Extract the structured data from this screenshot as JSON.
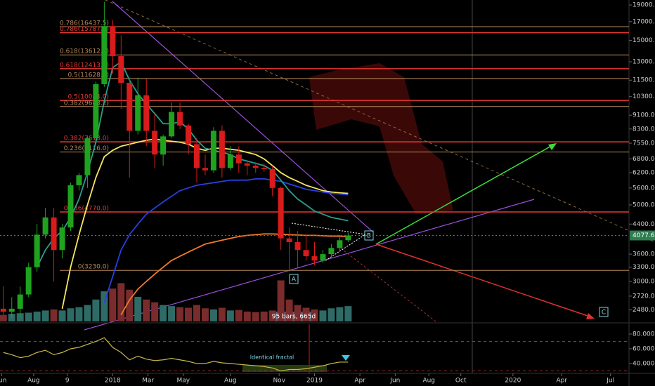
{
  "chart_data": {
    "type": "candlestick",
    "log_scale": true,
    "grid": false,
    "up_color": "#1fa31f",
    "down_color": "#d81b1b",
    "xlim": [
      -6.7,
      30.7
    ],
    "xticks": [
      {
        "value": -6.6,
        "label": "Jun"
      },
      {
        "value": -4.7,
        "label": "Aug"
      },
      {
        "value": -2.7,
        "label": "9"
      },
      {
        "value": 0,
        "label": "2018"
      },
      {
        "value": 2.1,
        "label": "Mar"
      },
      {
        "value": 4.2,
        "label": "May"
      },
      {
        "value": 7,
        "label": "Aug"
      },
      {
        "value": 9.9,
        "label": "Nov"
      },
      {
        "value": 12,
        "label": "2019"
      },
      {
        "value": 14.7,
        "label": "Apr"
      },
      {
        "value": 16.8,
        "label": "Jun"
      },
      {
        "value": 18.8,
        "label": "Aug"
      },
      {
        "value": 20.7,
        "label": "Oct"
      },
      {
        "value": 23.8,
        "label": "2020"
      },
      {
        "value": 26.7,
        "label": "Apr"
      },
      {
        "value": 29.6,
        "label": "Jul"
      }
    ],
    "ylim": [
      2297,
      19640
    ],
    "yticks": [
      {
        "value": 19000,
        "label": "19000.0"
      },
      {
        "value": 17000,
        "label": "17000.0"
      },
      {
        "value": 15000,
        "label": "15000.0"
      },
      {
        "value": 13000,
        "label": "13000.0"
      },
      {
        "value": 11500,
        "label": "11500.0"
      },
      {
        "value": 10300,
        "label": "10300.0"
      },
      {
        "value": 9100,
        "label": "9100.0"
      },
      {
        "value": 8300,
        "label": "8300.0"
      },
      {
        "value": 7550,
        "label": "7550.0"
      },
      {
        "value": 6800,
        "label": "6800.0"
      },
      {
        "value": 6200,
        "label": "6200.0"
      },
      {
        "value": 5600,
        "label": "5600.0"
      },
      {
        "value": 5000,
        "label": "5000.0"
      },
      {
        "value": 4400,
        "label": "4400.0"
      },
      {
        "value": 3600,
        "label": "3600.0"
      },
      {
        "value": 3300,
        "label": "3300.0"
      },
      {
        "value": 3000,
        "label": "3000.0"
      },
      {
        "value": 2720,
        "label": "2720.0"
      },
      {
        "value": 2480,
        "label": "2480.0"
      }
    ],
    "x": [
      -6.5,
      -6,
      -5.5,
      -5,
      -4.5,
      -4,
      -3.5,
      -3,
      -2.5,
      -2,
      -1.5,
      -1,
      -0.5,
      0,
      0.5,
      1,
      1.5,
      2,
      2.5,
      3,
      3.5,
      4,
      4.5,
      5,
      5.5,
      6,
      6.5,
      7,
      7.5,
      8,
      8.5,
      9,
      9.5,
      10,
      10.5,
      11,
      11.5,
      12,
      12.5,
      13,
      13.5,
      14
    ],
    "open": [
      2500,
      2450,
      2500,
      2750,
      3300,
      4100,
      4600,
      3700,
      4300,
      5700,
      6100,
      7800,
      11200,
      16500,
      13500,
      11300,
      8200,
      10400,
      8200,
      7000,
      7900,
      9300,
      8500,
      7500,
      6400,
      6300,
      8200,
      6400,
      7000,
      6600,
      6500,
      6400,
      6350,
      5600,
      4000,
      3900,
      3700,
      3550,
      3450,
      3600,
      3750,
      3950
    ],
    "high": [
      2900,
      2700,
      2900,
      3400,
      4400,
      4900,
      4900,
      4400,
      5800,
      6200,
      7900,
      11400,
      19400,
      17200,
      15500,
      11700,
      11700,
      11600,
      9200,
      8000,
      9900,
      9900,
      8600,
      7800,
      7000,
      8400,
      8500,
      7400,
      7400,
      6700,
      6650,
      6600,
      6500,
      5650,
      4300,
      4200,
      4100,
      3900,
      3700,
      3850,
      4100,
      4150
    ],
    "low": [
      2400,
      2350,
      2350,
      2700,
      3200,
      4000,
      3000,
      3500,
      4200,
      5500,
      5600,
      7800,
      11000,
      12000,
      9500,
      6000,
      8000,
      7400,
      6400,
      6500,
      7800,
      8300,
      7000,
      5800,
      6100,
      6200,
      6000,
      6300,
      6200,
      6100,
      6200,
      6250,
      5300,
      3700,
      3200,
      3300,
      3450,
      3350,
      3400,
      3500,
      3650,
      3900
    ],
    "close": [
      2450,
      2500,
      2750,
      3300,
      4100,
      4600,
      3700,
      4300,
      5700,
      6100,
      7800,
      11200,
      16500,
      13500,
      11300,
      8200,
      10400,
      8200,
      7000,
      7900,
      9300,
      8500,
      7500,
      6400,
      6300,
      8200,
      6400,
      7000,
      6600,
      6500,
      6400,
      6350,
      5600,
      4000,
      3900,
      3700,
      3550,
      3450,
      3600,
      3750,
      3950,
      4077.6
    ],
    "overlays": [
      {
        "color": "#f5e663",
        "values": [
          null,
          null,
          null,
          null,
          null,
          null,
          null,
          2500,
          3300,
          4100,
          5000,
          6000,
          6900,
          7200,
          7400,
          7500,
          7600,
          7700,
          7750,
          7700,
          7650,
          7600,
          7500,
          7300,
          7200,
          7300,
          7300,
          7250,
          7200,
          7100,
          7000,
          6800,
          6500,
          6200,
          6000,
          5850,
          5700,
          5600,
          5500,
          5450,
          5420,
          5400
        ]
      },
      {
        "color": "#2a3fe0",
        "values": [
          null,
          null,
          null,
          null,
          null,
          null,
          null,
          null,
          null,
          null,
          null,
          null,
          2600,
          3100,
          3700,
          4100,
          4400,
          4700,
          4900,
          5100,
          5300,
          5500,
          5600,
          5700,
          5750,
          5800,
          5850,
          5900,
          5900,
          5900,
          5950,
          5950,
          5900,
          5850,
          5750,
          5650,
          5550,
          5500,
          5450,
          5400,
          5380,
          5350
        ]
      },
      {
        "color": "#f07a2a",
        "values": [
          null,
          null,
          null,
          null,
          null,
          null,
          null,
          null,
          null,
          null,
          null,
          null,
          null,
          null,
          2400,
          2650,
          2850,
          3000,
          3150,
          3300,
          3450,
          3550,
          3650,
          3750,
          3850,
          3900,
          3950,
          4000,
          4050,
          4080,
          4100,
          4120,
          4120,
          4110,
          4100,
          4090,
          4080,
          4080,
          4070,
          4060,
          4060,
          4050
        ]
      },
      {
        "color": "#2a9d8f",
        "values": [
          null,
          null,
          null,
          null,
          3300,
          3700,
          4000,
          4200,
          4600,
          5200,
          6200,
          7600,
          10000,
          12500,
          13000,
          11500,
          10500,
          9800,
          9200,
          8600,
          8600,
          8700,
          8300,
          7700,
          7300,
          7200,
          7100,
          7000,
          6800,
          6700,
          6600,
          6500,
          6300,
          5900,
          5500,
          5200,
          5000,
          4800,
          4700,
          4600,
          4550,
          4500
        ]
      }
    ],
    "levels": [
      {
        "label": "0.786(16437.5)",
        "value": 16437.5,
        "color": "#b5885a"
      },
      {
        "label": "0.786(15787.2)",
        "value": 15787.2,
        "color": "#e53935"
      },
      {
        "label": "0.618(13612.8)",
        "value": 13612.8,
        "color": "#b5885a"
      },
      {
        "label": "0.618(12413.3)",
        "value": 12413.3,
        "color": "#e53935"
      },
      {
        "label": "0.5(11628.0)",
        "value": 11628,
        "color": "#b5885a"
      },
      {
        "label": "0.5(10044.0)",
        "value": 10044,
        "color": "#e53935"
      },
      {
        "label": "0.382(9643.2)",
        "value": 9643.2,
        "color": "#b5885a"
      },
      {
        "label": "0.382(7618.0)",
        "value": 7618,
        "color": "#e53935"
      },
      {
        "label": "0.236(7116.0)",
        "value": 7116,
        "color": "#b5885a"
      },
      {
        "label": "0.236(4770.0)",
        "value": 4770,
        "color": "#e53935"
      },
      {
        "label": "0(3230.0)",
        "value": 3230,
        "color": "#b5885a"
      }
    ],
    "last_price": 4077.6,
    "volume": {
      "up_color": "#2f6b66",
      "down_color": "#7a2b2b",
      "ylim": [
        0,
        100
      ],
      "values": [
        12,
        14,
        15,
        16,
        18,
        20,
        22,
        20,
        24,
        26,
        30,
        40,
        55,
        60,
        70,
        58,
        45,
        40,
        35,
        30,
        28,
        26,
        25,
        30,
        24,
        22,
        25,
        20,
        21,
        18,
        17,
        18,
        20,
        75,
        40,
        30,
        25,
        22,
        20,
        24,
        26,
        28
      ]
    },
    "indicator": {
      "color": "#c9b84a",
      "ylim": [
        26.7,
        93.3
      ],
      "levels": [
        70,
        30
      ],
      "yticks": [
        {
          "value": 80,
          "label": "80.0000"
        },
        {
          "value": 60,
          "label": "60.0000"
        },
        {
          "value": 40,
          "label": "40.0000"
        }
      ],
      "values": [
        55,
        52,
        48,
        50,
        55,
        58,
        52,
        55,
        60,
        62,
        66,
        70,
        75,
        62,
        55,
        45,
        50,
        46,
        44,
        45,
        47,
        45,
        43,
        40,
        40,
        43,
        41,
        40,
        39,
        38,
        37,
        36,
        34,
        30,
        32,
        32,
        33,
        35,
        37,
        40,
        42,
        42
      ]
    },
    "annotations": [
      "A",
      "B",
      "C",
      "95 bars, 665d",
      "Identical fractal"
    ]
  }
}
